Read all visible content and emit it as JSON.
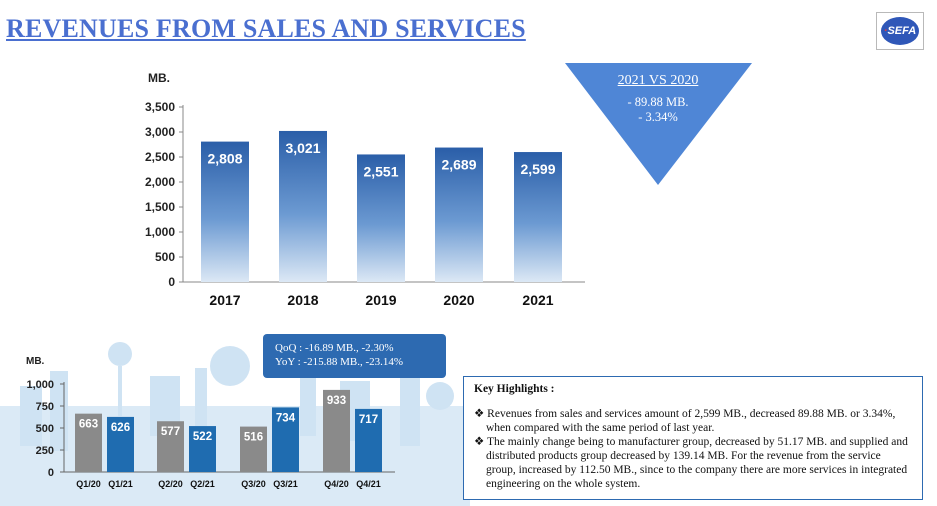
{
  "page": {
    "title": "REVENUES FROM SALES AND SERVICES",
    "logo_text": "SEFA"
  },
  "comparison": {
    "title": "2021 VS 2020",
    "line1": "- 89.88 MB.",
    "line2": "- 3.34%",
    "color": "#4f86d6"
  },
  "qoq_box": {
    "qoq": "QoQ : -16.89 MB., -2.30%",
    "yoy": "YoY : -215.88 MB., -23.14%",
    "color": "#2d6ab1"
  },
  "highlights": {
    "title": "Key Highlights :",
    "items": [
      "❖ Revenues from sales and services  amount of  2,599 MB., decreased 89.88 MB. or 3.34%, when compared with the same period of last year.",
      "❖ The mainly change being to manufacturer group, decreased by 51.17 MB. and supplied and distributed products group decreased by 139.14 MB. For the revenue from the service group, increased by 112.50 MB., since to the company there are more services in integrated engineering on the whole system."
    ]
  },
  "chart_data": [
    {
      "type": "bar",
      "ylabel": "MB.",
      "categories": [
        "2017",
        "2018",
        "2019",
        "2020",
        "2021"
      ],
      "values": [
        2808,
        3021,
        2551,
        2689,
        2599
      ],
      "value_labels": [
        "2,808",
        "3,021",
        "2,551",
        "2,689",
        "2,599"
      ],
      "ylim": [
        0,
        3500
      ],
      "yticks": [
        0,
        500,
        1000,
        1500,
        2000,
        2500,
        3000,
        3500
      ],
      "ytick_labels": [
        "0",
        "500",
        "1,000",
        "1,500",
        "2,000",
        "2,500",
        "3,000",
        "3,500"
      ],
      "grid": false,
      "bar_color": "#2f64b0"
    },
    {
      "type": "bar",
      "ylabel": "MB.",
      "categories": [
        "Q1/20",
        "Q1/21",
        "Q2/20",
        "Q2/21",
        "Q3/20",
        "Q3/21",
        "Q4/20",
        "Q4/21"
      ],
      "values": [
        663,
        626,
        577,
        522,
        516,
        734,
        933,
        717
      ],
      "value_labels": [
        "663",
        "626",
        "577",
        "522",
        "516",
        "734",
        "933",
        "717"
      ],
      "ylim": [
        0,
        1000
      ],
      "yticks": [
        0,
        250,
        500,
        750,
        1000
      ],
      "ytick_labels": [
        "0",
        "250",
        "500",
        "750",
        "1,000"
      ],
      "grid": false,
      "colors": [
        "#8a8a8a",
        "#1f6cb0"
      ]
    }
  ]
}
